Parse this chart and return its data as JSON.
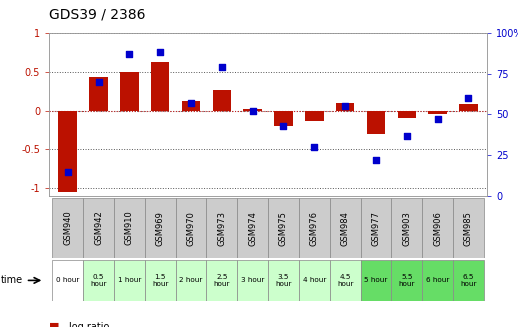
{
  "title": "GDS39 / 2386",
  "samples": [
    "GSM940",
    "GSM942",
    "GSM910",
    "GSM969",
    "GSM970",
    "GSM973",
    "GSM974",
    "GSM975",
    "GSM976",
    "GSM984",
    "GSM977",
    "GSM903",
    "GSM906",
    "GSM985"
  ],
  "time_labels": [
    "0 hour",
    "0.5\nhour",
    "1 hour",
    "1.5\nhour",
    "2 hour",
    "2.5\nhour",
    "3 hour",
    "3.5\nhour",
    "4 hour",
    "4.5\nhour",
    "5 hour",
    "5.5\nhour",
    "6 hour",
    "6.5\nhour"
  ],
  "time_colors": [
    "#ffffff",
    "#ccffcc",
    "#ccffcc",
    "#ccffcc",
    "#ccffcc",
    "#ccffcc",
    "#ccffcc",
    "#ccffcc",
    "#ccffcc",
    "#ccffcc",
    "#66dd66",
    "#66dd66",
    "#66dd66",
    "#66dd66"
  ],
  "log_ratio": [
    -1.05,
    0.43,
    0.5,
    0.63,
    0.12,
    0.27,
    0.02,
    -0.2,
    -0.14,
    0.1,
    -0.3,
    -0.1,
    -0.05,
    0.08
  ],
  "percentile": [
    15,
    70,
    87,
    88,
    57,
    79,
    52,
    43,
    30,
    55,
    22,
    37,
    47,
    60
  ],
  "ylim_left": [
    -1.1,
    1.0
  ],
  "ylim_right": [
    0,
    100
  ],
  "bar_color": "#bb1100",
  "dot_color": "#0000cc",
  "background_color": "#ffffff",
  "plot_bg_color": "#ffffff",
  "grid_color": "#555555",
  "zero_line_color": "#cc2222",
  "title_fontsize": 10,
  "tick_fontsize": 7,
  "label_fontsize": 7,
  "gsm_bg_color": "#cccccc",
  "gsm_border_color": "#888888"
}
